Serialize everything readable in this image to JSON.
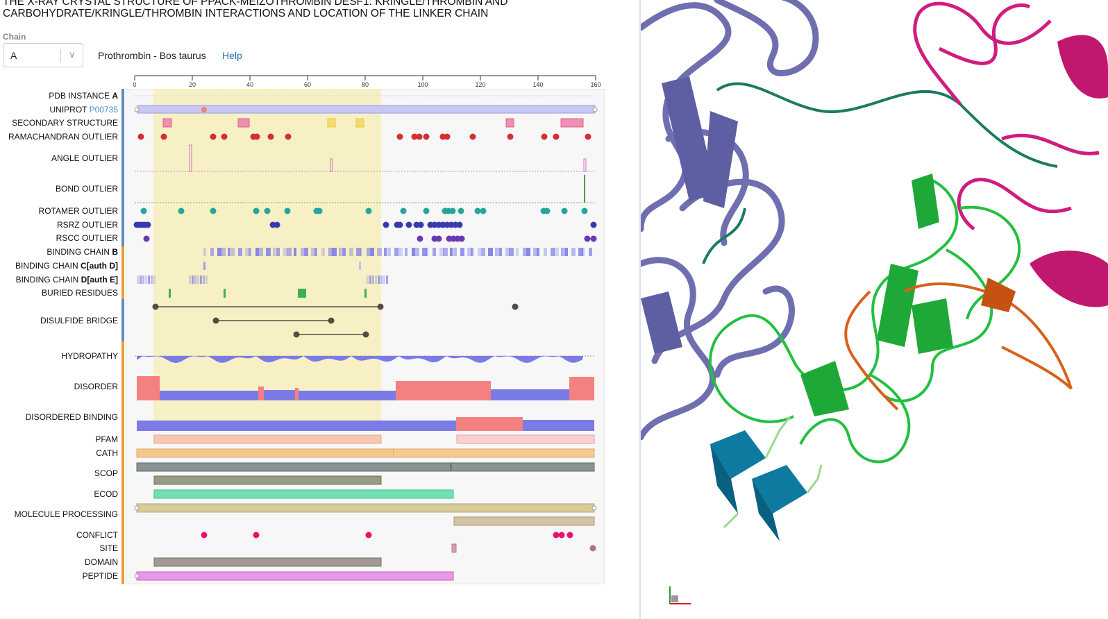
{
  "page": {
    "title": "THE X-RAY CRYSTAL STRUCTURE OF PPACK-MEIZOTHROMBIN DESF1: KRINGLE/THROMBIN AND CARBOHYDRATE/KRINGLE/THROMBIN INTERACTIONS AND LOCATION OF THE LINKER CHAIN"
  },
  "chain": {
    "label": "Chain",
    "value": "A"
  },
  "organism": "Prothrombin - Bos taurus",
  "help_label": "Help",
  "ruler": {
    "ticks": [
      0,
      20,
      40,
      60,
      80,
      100,
      120,
      140,
      160
    ],
    "max": 160
  },
  "tracks": [
    {
      "text": "PDB INSTANCE ",
      "bold": "A"
    },
    {
      "text": "UNIPROT ",
      "link": "P00735"
    },
    {
      "text": "SECONDARY STRUCTURE"
    },
    {
      "text": "RAMACHANDRAN OUTLIER"
    },
    {
      "text": "ANGLE OUTLIER"
    },
    {
      "text": "BOND OUTLIER"
    },
    {
      "text": "ROTAMER OUTLIER"
    },
    {
      "text": "RSRZ OUTLIER"
    },
    {
      "text": "RSCC OUTLIER"
    },
    {
      "text": "BINDING CHAIN ",
      "bold": "B"
    },
    {
      "text": "BINDING CHAIN ",
      "bold": "C[auth D]"
    },
    {
      "text": "BINDING CHAIN ",
      "bold": "D[auth E]"
    },
    {
      "text": "BURIED RESIDUES"
    },
    {
      "text": "DISULFIDE BRIDGE"
    },
    {
      "text": "HYDROPATHY"
    },
    {
      "text": "DISORDER"
    },
    {
      "text": "DISORDERED BINDING"
    },
    {
      "text": "PFAM"
    },
    {
      "text": "CATH"
    },
    {
      "text": "SCOP"
    },
    {
      "text": "ECOD"
    },
    {
      "text": "MOLECULE PROCESSING"
    },
    {
      "text": "CONFLICT"
    },
    {
      "text": "SITE"
    },
    {
      "text": "DOMAIN"
    },
    {
      "text": "PEPTIDE"
    }
  ],
  "colors": {
    "structure_blue": "#6f6fb0",
    "structure_green": "#22c040",
    "structure_magenta": "#d01c80",
    "structure_orange": "#d8601a",
    "ligand_teal": "#117a9c",
    "highlight": "#f7eebc",
    "link": "#1a6fb5"
  }
}
